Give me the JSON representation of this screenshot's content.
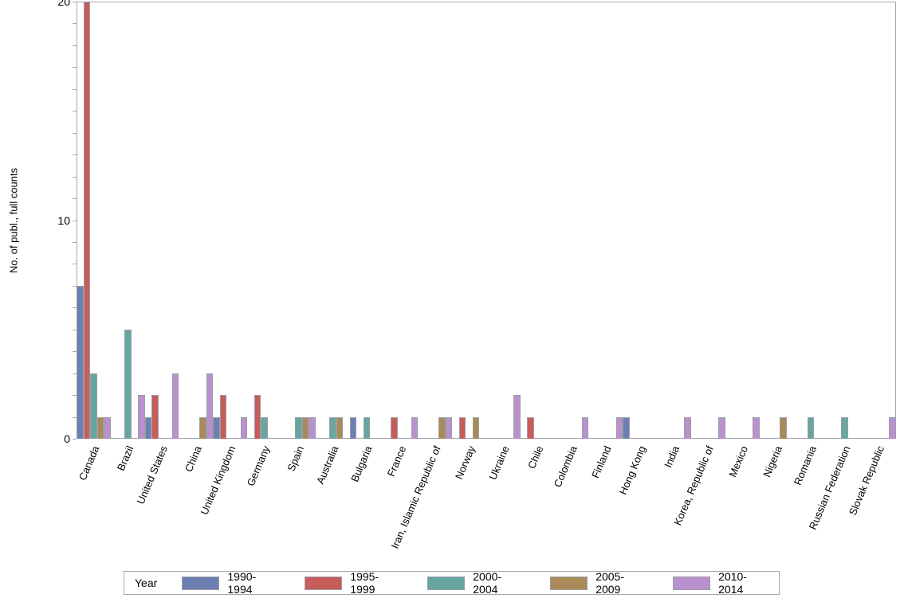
{
  "chart_data": {
    "type": "bar",
    "title": "",
    "xlabel": "",
    "ylabel": "No. of publ., full counts",
    "ylim": [
      0,
      20
    ],
    "yticks_labeled": [
      0,
      10,
      20
    ],
    "minor_tick_step": 1,
    "grid": false,
    "legend_position": "bottom",
    "legend_title": "Year",
    "categories": [
      "Canada",
      "Brazil",
      "United States",
      "China",
      "United Kingdom",
      "Germany",
      "Spain",
      "Australia",
      "Bulgaria",
      "France",
      "Iran, Islamic Republic of",
      "Norway",
      "Ukraine",
      "Chile",
      "Colombia",
      "Finland",
      "Hong Kong",
      "India",
      "Korea, Republic of",
      "Mexico",
      "Nigeria",
      "Romania",
      "Russian Federation",
      "Slovak Republic"
    ],
    "series": [
      {
        "name": "1990-1994",
        "color": "#6d7fb2",
        "values": [
          7,
          0,
          1,
          0,
          1,
          0,
          0,
          0,
          1,
          0,
          0,
          0,
          0,
          0,
          0,
          0,
          1,
          0,
          0,
          0,
          0,
          0,
          0,
          0
        ]
      },
      {
        "name": "1995-1999",
        "color": "#c85c5a",
        "values": [
          20,
          0,
          2,
          0,
          2,
          2,
          0,
          0,
          0,
          1,
          0,
          1,
          0,
          1,
          0,
          0,
          0,
          0,
          0,
          0,
          0,
          0,
          0,
          0
        ]
      },
      {
        "name": "2000-2004",
        "color": "#66a5a0",
        "values": [
          3,
          5,
          0,
          0,
          0,
          1,
          1,
          1,
          1,
          0,
          0,
          0,
          0,
          0,
          0,
          0,
          0,
          0,
          0,
          0,
          0,
          1,
          1,
          0
        ]
      },
      {
        "name": "2005-2009",
        "color": "#a98a58",
        "values": [
          1,
          0,
          0,
          1,
          0,
          0,
          1,
          1,
          0,
          0,
          1,
          1,
          0,
          0,
          0,
          0,
          0,
          0,
          0,
          0,
          1,
          0,
          0,
          0
        ]
      },
      {
        "name": "2010-2014",
        "color": "#bb90cf",
        "values": [
          1,
          2,
          3,
          3,
          1,
          0,
          1,
          0,
          0,
          1,
          1,
          0,
          2,
          0,
          1,
          1,
          0,
          1,
          1,
          1,
          0,
          0,
          0,
          1
        ]
      }
    ],
    "colors": {
      "frame": "#a3a7ad",
      "bar_outline": "#9a9ea3",
      "text": "#000000"
    }
  }
}
